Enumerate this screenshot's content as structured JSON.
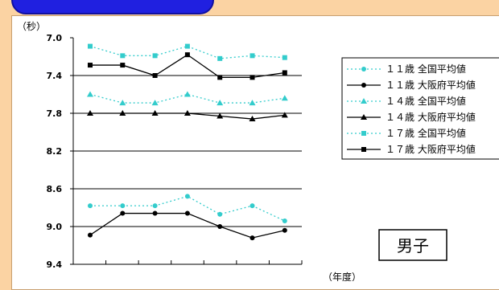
{
  "chart_data": {
    "type": "line",
    "y_unit": "（秒）",
    "x_unit": "（年度）",
    "y_axis": {
      "min": 7.0,
      "max": 9.4,
      "inverted": true,
      "ticks": [
        "7.0",
        "7.4",
        "7.8",
        "8.2",
        "8.6",
        "9.0",
        "9.4"
      ],
      "grid": true
    },
    "x_count": 7,
    "badge": "男子",
    "series": [
      {
        "name": "１１歳 全国平均値",
        "style": "dotted",
        "marker": "circle",
        "color": "#33cccc",
        "values": [
          8.78,
          8.78,
          8.78,
          8.68,
          8.87,
          8.78,
          8.94
        ]
      },
      {
        "name": "１１歳 大阪府平均値",
        "style": "solid",
        "marker": "circle",
        "color": "#000000",
        "values": [
          9.09,
          8.86,
          8.86,
          8.86,
          9.0,
          9.12,
          9.04
        ]
      },
      {
        "name": "１４歳 全国平均値",
        "style": "dotted",
        "marker": "triangle",
        "color": "#33cccc",
        "values": [
          7.6,
          7.69,
          7.69,
          7.6,
          7.69,
          7.69,
          7.64
        ]
      },
      {
        "name": "１４歳 大阪府平均値",
        "style": "solid",
        "marker": "triangle",
        "color": "#000000",
        "values": [
          7.8,
          7.8,
          7.8,
          7.8,
          7.83,
          7.86,
          7.82
        ]
      },
      {
        "name": "１７歳 全国平均値",
        "style": "dotted",
        "marker": "square",
        "color": "#33cccc",
        "values": [
          7.09,
          7.19,
          7.19,
          7.09,
          7.22,
          7.19,
          7.21
        ]
      },
      {
        "name": "１７歳 大阪府平均値",
        "style": "solid",
        "marker": "square",
        "color": "#000000",
        "values": [
          7.29,
          7.29,
          7.4,
          7.18,
          7.42,
          7.42,
          7.37
        ]
      }
    ]
  }
}
